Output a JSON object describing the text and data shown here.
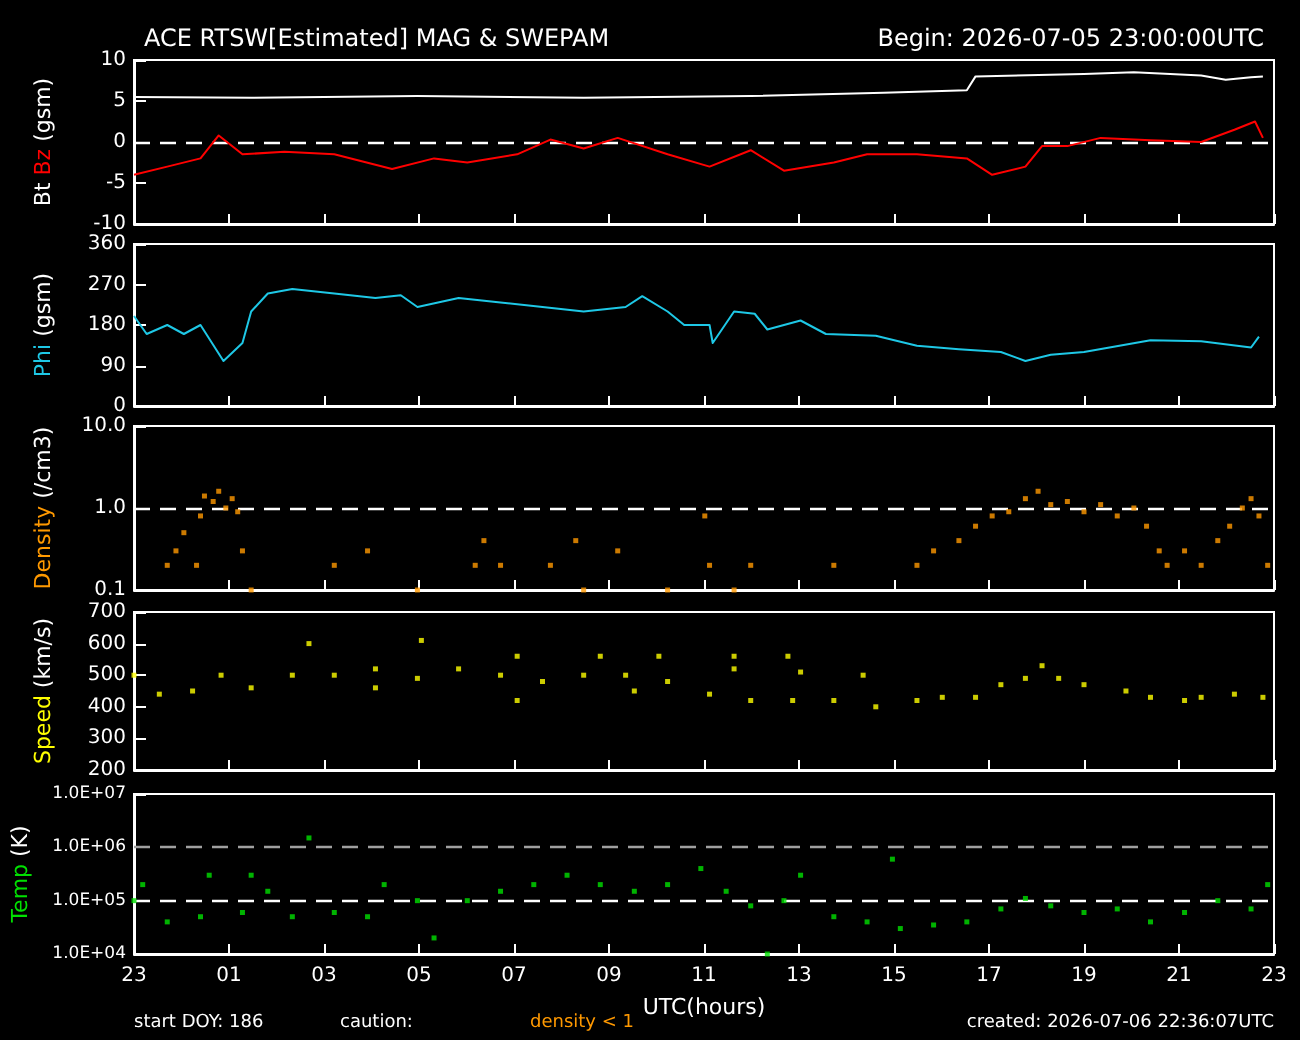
{
  "chart_data": [
    {
      "type": "line",
      "title": "ACE RTSW[Estimated] MAG & SWEPAM",
      "subtitle": "Begin: 2026-07-05 23:00:00UTC",
      "ylabel": "(gsm)",
      "xlim": [
        "2026-07-05T23:00",
        "2026-07-06T23:00"
      ],
      "xticks": [
        {
          "value": "2026-07-05T23:00",
          "label": null
        },
        {
          "value": "2026-07-06T01:00",
          "label": null
        },
        {
          "value": "2026-07-06T03:00",
          "label": null
        },
        {
          "value": "2026-07-06T05:00",
          "label": null
        },
        {
          "value": "2026-07-06T07:00",
          "label": null
        },
        {
          "value": "2026-07-06T09:00",
          "label": null
        },
        {
          "value": "2026-07-06T11:00",
          "label": null
        },
        {
          "value": "2026-07-06T13:00",
          "label": null
        },
        {
          "value": "2026-07-06T15:00",
          "label": null
        },
        {
          "value": "2026-07-06T17:00",
          "label": null
        },
        {
          "value": "2026-07-06T19:00",
          "label": null
        },
        {
          "value": "2026-07-06T21:00",
          "label": null
        },
        {
          "value": "2026-07-06T23:00",
          "label": null
        }
      ],
      "ylim": [
        -10,
        10
      ],
      "yticks": [
        -10,
        -5,
        0,
        5,
        10
      ],
      "tick_labels": "y",
      "grid": false,
      "ref_lines": [
        {
          "axis": "y",
          "value": 0,
          "color": "#ffffff",
          "line_style": "dashed"
        }
      ],
      "series": [
        {
          "name": "Bt",
          "color": "#ffffff",
          "x": [
            "2026-07-05T23:00",
            "2026-07-06T01:28",
            "2026-07-06T04:58",
            "2026-07-06T08:28",
            "2026-07-06T11:59",
            "2026-07-06T14:47",
            "2026-07-06T16:32",
            "2026-07-06T16:43",
            "2026-07-06T19:00",
            "2026-07-06T20:03",
            "2026-07-06T21:28",
            "2026-07-06T21:59",
            "2026-07-06T22:31",
            "2026-07-06T22:46"
          ],
          "values": [
            5.5,
            5.4,
            5.6,
            5.4,
            5.6,
            6.0,
            6.3,
            8.0,
            8.3,
            8.5,
            8.1,
            7.6,
            7.9,
            8.0
          ]
        },
        {
          "name": "Bz",
          "color": "#ff0000",
          "x": [
            "2026-07-05T23:00",
            "2026-07-05T23:42",
            "2026-07-06T00:24",
            "2026-07-06T00:47",
            "2026-07-06T01:17",
            "2026-07-06T02:10",
            "2026-07-06T03:13",
            "2026-07-06T04:26",
            "2026-07-06T05:19",
            "2026-07-06T06:01",
            "2026-07-06T07:04",
            "2026-07-06T07:46",
            "2026-07-06T08:28",
            "2026-07-06T09:11",
            "2026-07-06T10:14",
            "2026-07-06T11:07",
            "2026-07-06T11:59",
            "2026-07-06T12:41",
            "2026-07-06T13:44",
            "2026-07-06T14:26",
            "2026-07-06T15:29",
            "2026-07-06T16:32",
            "2026-07-06T17:04",
            "2026-07-06T17:46",
            "2026-07-06T18:07",
            "2026-07-06T18:39",
            "2026-07-06T19:21",
            "2026-07-06T20:24",
            "2026-07-06T21:28",
            "2026-07-06T22:10",
            "2026-07-06T22:36",
            "2026-07-06T22:46"
          ],
          "values": [
            -4,
            -3,
            -2,
            0.8,
            -1.5,
            -1.2,
            -1.5,
            -3.3,
            -2,
            -2.5,
            -1.5,
            0.3,
            -0.8,
            0.5,
            -1.5,
            -3,
            -1,
            -3.5,
            -2.5,
            -1.5,
            -1.5,
            -2,
            -4,
            -3,
            -0.5,
            -0.5,
            0.5,
            0.2,
            0,
            1.5,
            2.5,
            0.5
          ]
        }
      ]
    },
    {
      "type": "line",
      "ylabel": "(gsm)",
      "xlim": [
        "2026-07-05T23:00",
        "2026-07-06T23:00"
      ],
      "xticks": [
        {
          "value": "2026-07-05T23:00",
          "label": null
        },
        {
          "value": "2026-07-06T01:00",
          "label": null
        },
        {
          "value": "2026-07-06T03:00",
          "label": null
        },
        {
          "value": "2026-07-06T05:00",
          "label": null
        },
        {
          "value": "2026-07-06T07:00",
          "label": null
        },
        {
          "value": "2026-07-06T09:00",
          "label": null
        },
        {
          "value": "2026-07-06T11:00",
          "label": null
        },
        {
          "value": "2026-07-06T13:00",
          "label": null
        },
        {
          "value": "2026-07-06T15:00",
          "label": null
        },
        {
          "value": "2026-07-06T17:00",
          "label": null
        },
        {
          "value": "2026-07-06T19:00",
          "label": null
        },
        {
          "value": "2026-07-06T21:00",
          "label": null
        },
        {
          "value": "2026-07-06T23:00",
          "label": null
        }
      ],
      "ylim": [
        0,
        360
      ],
      "yticks": [
        0,
        90,
        180,
        270,
        360
      ],
      "tick_labels": "y",
      "grid": false,
      "series": [
        {
          "name": "Phi",
          "color": "#1ec8e6",
          "x": [
            "2026-07-05T23:00",
            "2026-07-05T23:16",
            "2026-07-05T23:42",
            "2026-07-06T00:03",
            "2026-07-06T00:24",
            "2026-07-06T00:53",
            "2026-07-06T01:17",
            "2026-07-06T01:28",
            "2026-07-06T01:49",
            "2026-07-06T02:20",
            "2026-07-06T03:13",
            "2026-07-06T04:05",
            "2026-07-06T04:37",
            "2026-07-06T04:58",
            "2026-07-06T05:50",
            "2026-07-06T06:43",
            "2026-07-06T07:36",
            "2026-07-06T08:28",
            "2026-07-06T09:21",
            "2026-07-06T09:42",
            "2026-07-06T10:14",
            "2026-07-06T10:35",
            "2026-07-06T11:07",
            "2026-07-06T11:11",
            "2026-07-06T11:38",
            "2026-07-06T12:04",
            "2026-07-06T12:20",
            "2026-07-06T13:02",
            "2026-07-06T13:34",
            "2026-07-06T14:37",
            "2026-07-06T15:29",
            "2026-07-06T16:22",
            "2026-07-06T17:15",
            "2026-07-06T17:46",
            "2026-07-06T18:18",
            "2026-07-06T19:00",
            "2026-07-06T20:24",
            "2026-07-06T21:28",
            "2026-07-06T22:31",
            "2026-07-06T22:41"
          ],
          "values": [
            200,
            160,
            180,
            160,
            180,
            100,
            140,
            210,
            250,
            260,
            250,
            240,
            246,
            220,
            240,
            230,
            220,
            210,
            220,
            244,
            210,
            180,
            180,
            140,
            210,
            205,
            170,
            190,
            160,
            156,
            134,
            126,
            120,
            100,
            114,
            120,
            146,
            144,
            130,
            154
          ]
        }
      ]
    },
    {
      "type": "scatter",
      "ylabel": "(/cm3)",
      "xlim": [
        "2026-07-05T23:00",
        "2026-07-06T23:00"
      ],
      "xticks": [
        {
          "value": "2026-07-05T23:00",
          "label": null
        },
        {
          "value": "2026-07-06T01:00",
          "label": null
        },
        {
          "value": "2026-07-06T03:00",
          "label": null
        },
        {
          "value": "2026-07-06T05:00",
          "label": null
        },
        {
          "value": "2026-07-06T07:00",
          "label": null
        },
        {
          "value": "2026-07-06T09:00",
          "label": null
        },
        {
          "value": "2026-07-06T11:00",
          "label": null
        },
        {
          "value": "2026-07-06T13:00",
          "label": null
        },
        {
          "value": "2026-07-06T15:00",
          "label": null
        },
        {
          "value": "2026-07-06T17:00",
          "label": null
        },
        {
          "value": "2026-07-06T19:00",
          "label": null
        },
        {
          "value": "2026-07-06T21:00",
          "label": null
        },
        {
          "value": "2026-07-06T23:00",
          "label": null
        }
      ],
      "ylim": [
        0.1,
        10
      ],
      "yticks": [
        0.1,
        {
          "value": 1,
          "label": "1.0"
        },
        {
          "value": 10,
          "label": "10.0"
        }
      ],
      "log": true,
      "tick_labels": "y",
      "grid": false,
      "marker": "square",
      "ref_lines": [
        {
          "axis": "y",
          "value": 1,
          "color": "#ffffff",
          "line_style": "dashed"
        }
      ],
      "series": [
        {
          "name": "Density",
          "color": "#ff9900",
          "x": [
            "2026-07-05T23:42",
            "2026-07-05T23:53",
            "2026-07-06T00:03",
            "2026-07-06T00:19",
            "2026-07-06T00:24",
            "2026-07-06T00:29",
            "2026-07-06T00:40",
            "2026-07-06T00:47",
            "2026-07-06T00:56",
            "2026-07-06T01:04",
            "2026-07-06T01:11",
            "2026-07-06T01:17",
            "2026-07-06T01:28",
            "2026-07-06T03:13",
            "2026-07-06T03:55",
            "2026-07-06T04:58",
            "2026-07-06T06:11",
            "2026-07-06T06:22",
            "2026-07-06T06:43",
            "2026-07-06T07:46",
            "2026-07-06T08:18",
            "2026-07-06T08:28",
            "2026-07-06T09:11",
            "2026-07-06T10:14",
            "2026-07-06T11:01",
            "2026-07-06T11:07",
            "2026-07-06T11:38",
            "2026-07-06T11:59",
            "2026-07-06T13:44",
            "2026-07-06T15:29",
            "2026-07-06T15:50",
            "2026-07-06T16:22",
            "2026-07-06T16:43",
            "2026-07-06T17:04",
            "2026-07-06T17:25",
            "2026-07-06T17:46",
            "2026-07-06T18:02",
            "2026-07-06T18:18",
            "2026-07-06T18:39",
            "2026-07-06T19:00",
            "2026-07-06T19:21",
            "2026-07-06T19:42",
            "2026-07-06T20:03",
            "2026-07-06T20:19",
            "2026-07-06T20:35",
            "2026-07-06T20:45",
            "2026-07-06T21:07",
            "2026-07-06T21:28",
            "2026-07-06T21:49",
            "2026-07-06T22:04",
            "2026-07-06T22:20",
            "2026-07-06T22:31",
            "2026-07-06T22:41",
            "2026-07-06T22:52"
          ],
          "values": [
            0.2,
            0.3,
            0.5,
            0.2,
            0.8,
            1.4,
            1.2,
            1.6,
            1.0,
            1.3,
            0.9,
            0.3,
            0.1,
            0.2,
            0.3,
            0.1,
            0.2,
            0.4,
            0.2,
            0.2,
            0.4,
            0.1,
            0.3,
            0.1,
            0.8,
            0.2,
            0.1,
            0.2,
            0.2,
            0.2,
            0.3,
            0.4,
            0.6,
            0.8,
            0.9,
            1.3,
            1.6,
            1.1,
            1.2,
            0.9,
            1.1,
            0.8,
            1.0,
            0.6,
            0.3,
            0.2,
            0.3,
            0.2,
            0.4,
            0.6,
            1.0,
            1.3,
            0.8,
            0.2
          ]
        }
      ]
    },
    {
      "type": "scatter",
      "ylabel": "(km/s)",
      "xlim": [
        "2026-07-05T23:00",
        "2026-07-06T23:00"
      ],
      "xticks": [
        {
          "value": "2026-07-05T23:00",
          "label": null
        },
        {
          "value": "2026-07-06T01:00",
          "label": null
        },
        {
          "value": "2026-07-06T03:00",
          "label": null
        },
        {
          "value": "2026-07-06T05:00",
          "label": null
        },
        {
          "value": "2026-07-06T07:00",
          "label": null
        },
        {
          "value": "2026-07-06T09:00",
          "label": null
        },
        {
          "value": "2026-07-06T11:00",
          "label": null
        },
        {
          "value": "2026-07-06T13:00",
          "label": null
        },
        {
          "value": "2026-07-06T15:00",
          "label": null
        },
        {
          "value": "2026-07-06T17:00",
          "label": null
        },
        {
          "value": "2026-07-06T19:00",
          "label": null
        },
        {
          "value": "2026-07-06T21:00",
          "label": null
        },
        {
          "value": "2026-07-06T23:00",
          "label": null
        }
      ],
      "ylim": [
        200,
        700
      ],
      "yticks": [
        200,
        300,
        400,
        500,
        600,
        700
      ],
      "tick_labels": "y",
      "grid": false,
      "marker": "square",
      "series": [
        {
          "name": "Speed",
          "color": "#ffff00",
          "x": [
            "2026-07-05T23:00",
            "2026-07-05T23:32",
            "2026-07-06T00:14",
            "2026-07-06T00:50",
            "2026-07-06T01:28",
            "2026-07-06T02:20",
            "2026-07-06T02:41",
            "2026-07-06T03:13",
            "2026-07-06T04:05",
            "2026-07-06T04:05",
            "2026-07-06T04:58",
            "2026-07-06T05:03",
            "2026-07-06T05:50",
            "2026-07-06T06:43",
            "2026-07-06T07:04",
            "2026-07-06T07:04",
            "2026-07-06T07:36",
            "2026-07-06T08:28",
            "2026-07-06T08:49",
            "2026-07-06T09:21",
            "2026-07-06T09:32",
            "2026-07-06T10:03",
            "2026-07-06T10:14",
            "2026-07-06T11:07",
            "2026-07-06T11:38",
            "2026-07-06T11:38",
            "2026-07-06T11:59",
            "2026-07-06T12:46",
            "2026-07-06T12:52",
            "2026-07-06T13:02",
            "2026-07-06T13:44",
            "2026-07-06T14:21",
            "2026-07-06T14:37",
            "2026-07-06T15:29",
            "2026-07-06T16:01",
            "2026-07-06T16:43",
            "2026-07-06T17:15",
            "2026-07-06T17:46",
            "2026-07-06T18:07",
            "2026-07-06T18:28",
            "2026-07-06T19:00",
            "2026-07-06T19:53",
            "2026-07-06T20:24",
            "2026-07-06T21:07",
            "2026-07-06T21:28",
            "2026-07-06T22:10",
            "2026-07-06T22:46"
          ],
          "values": [
            500,
            440,
            450,
            500,
            460,
            500,
            600,
            500,
            520,
            460,
            490,
            610,
            520,
            500,
            420,
            560,
            480,
            500,
            560,
            500,
            450,
            560,
            480,
            440,
            520,
            560,
            420,
            560,
            420,
            510,
            420,
            500,
            400,
            420,
            430,
            430,
            470,
            490,
            530,
            490,
            470,
            450,
            430,
            420,
            430,
            440,
            430
          ]
        }
      ]
    },
    {
      "type": "scatter",
      "ylabel": "(K)",
      "xlabel": "UTC(hours)",
      "annotations": [
        "start DOY: 186",
        "caution:",
        "density < 1",
        "created: 2026-07-06 22:36:07UTC"
      ],
      "xlim": [
        "2026-07-05T23:00",
        "2026-07-06T23:00"
      ],
      "xticks": [
        {
          "value": "2026-07-05T23:00",
          "label": "23"
        },
        {
          "value": "2026-07-06T01:00",
          "label": "01"
        },
        {
          "value": "2026-07-06T03:00",
          "label": "03"
        },
        {
          "value": "2026-07-06T05:00",
          "label": "05"
        },
        {
          "value": "2026-07-06T07:00",
          "label": "07"
        },
        {
          "value": "2026-07-06T09:00",
          "label": "09"
        },
        {
          "value": "2026-07-06T11:00",
          "label": "11"
        },
        {
          "value": "2026-07-06T13:00",
          "label": "13"
        },
        {
          "value": "2026-07-06T15:00",
          "label": "15"
        },
        {
          "value": "2026-07-06T17:00",
          "label": "17"
        },
        {
          "value": "2026-07-06T19:00",
          "label": "19"
        },
        {
          "value": "2026-07-06T21:00",
          "label": "21"
        },
        {
          "value": "2026-07-06T23:00",
          "label": "23"
        }
      ],
      "ylim": [
        10000,
        10000000
      ],
      "yticks": [
        {
          "value": 10000,
          "label": "1.0E+04"
        },
        {
          "value": 100000,
          "label": "1.0E+05"
        },
        {
          "value": 1000000,
          "label": "1.0E+06"
        },
        {
          "value": 10000000,
          "label": "1.0E+07"
        }
      ],
      "log": true,
      "grid": false,
      "marker": "square",
      "ref_lines": [
        {
          "axis": "y",
          "value": 100000,
          "color": "#ffffff",
          "line_style": "dashed"
        },
        {
          "axis": "y",
          "value": 1000000,
          "color": "#a0a0a0",
          "line_style": "dashed"
        }
      ],
      "series": [
        {
          "name": "Temp",
          "color": "#00e000",
          "x": [
            "2026-07-05T23:00",
            "2026-07-05T23:11",
            "2026-07-05T23:42",
            "2026-07-06T00:24",
            "2026-07-06T00:35",
            "2026-07-06T01:17",
            "2026-07-06T01:28",
            "2026-07-06T01:49",
            "2026-07-06T02:20",
            "2026-07-06T02:41",
            "2026-07-06T03:13",
            "2026-07-06T03:55",
            "2026-07-06T04:16",
            "2026-07-06T04:58",
            "2026-07-06T05:19",
            "2026-07-06T06:01",
            "2026-07-06T06:43",
            "2026-07-06T07:25",
            "2026-07-06T08:07",
            "2026-07-06T08:49",
            "2026-07-06T09:32",
            "2026-07-06T10:14",
            "2026-07-06T10:56",
            "2026-07-06T11:28",
            "2026-07-06T11:59",
            "2026-07-06T12:20",
            "2026-07-06T12:41",
            "2026-07-06T13:02",
            "2026-07-06T13:44",
            "2026-07-06T14:26",
            "2026-07-06T14:58",
            "2026-07-06T15:08",
            "2026-07-06T15:50",
            "2026-07-06T16:32",
            "2026-07-06T17:15",
            "2026-07-06T17:46",
            "2026-07-06T18:18",
            "2026-07-06T19:00",
            "2026-07-06T19:42",
            "2026-07-06T20:24",
            "2026-07-06T21:07",
            "2026-07-06T21:49",
            "2026-07-06T22:31",
            "2026-07-06T22:52"
          ],
          "values": [
            100000,
            200000,
            40000,
            50000,
            300000,
            60000,
            300000,
            150000,
            50000,
            1500000,
            60000,
            50000,
            200000,
            100000,
            20000,
            100000,
            150000,
            200000,
            300000,
            200000,
            150000,
            200000,
            400000,
            150000,
            80000,
            10000,
            100000,
            300000,
            50000,
            40000,
            600000,
            30000,
            35000,
            40000,
            70000,
            110000,
            80000,
            60000,
            70000,
            40000,
            60000,
            100000,
            70000,
            200000
          ]
        }
      ]
    }
  ]
}
